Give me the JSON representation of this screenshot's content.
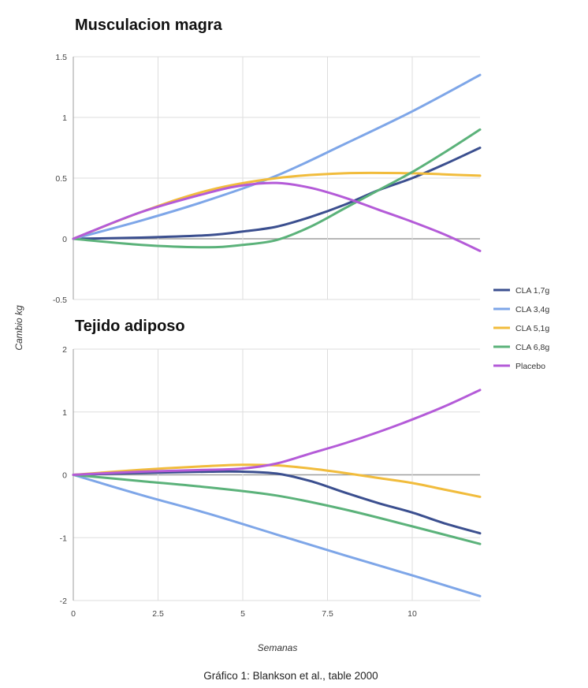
{
  "chart_data": {
    "type": "line",
    "xlabel": "Semanas",
    "ylabel": "Cambio kg",
    "caption": "Gráfico 1: Blankson et al., table 2000",
    "grid": true,
    "legend_position": "right",
    "x_ticks": [
      "0",
      "2.5",
      "5",
      "7.5",
      "10"
    ],
    "xlim": [
      0,
      12
    ],
    "legend": [
      {
        "name": "CLA 1,7g",
        "color": "#3b4f8f"
      },
      {
        "name": "CLA 3,4g",
        "color": "#7ea6e8"
      },
      {
        "name": "CLA 5,1g",
        "color": "#f1bc3c"
      },
      {
        "name": "CLA 6,8g",
        "color": "#5bb27a"
      },
      {
        "name": "Placebo",
        "color": "#b45bd8"
      }
    ],
    "panels": [
      {
        "title": "Musculacion magra",
        "ylim": [
          -0.5,
          1.5
        ],
        "y_ticks": [
          "1.5",
          "1",
          "0.5",
          "0",
          "-0.5"
        ],
        "series": [
          {
            "name": "CLA 1,7g",
            "x": [
              0,
              2,
              4,
              5,
              6,
              7,
              8,
              9,
              10,
              11,
              12
            ],
            "y": [
              0,
              0.01,
              0.03,
              0.06,
              0.1,
              0.18,
              0.28,
              0.4,
              0.5,
              0.62,
              0.75
            ]
          },
          {
            "name": "CLA 3,4g",
            "x": [
              0,
              2,
              4,
              6,
              8,
              10,
              12
            ],
            "y": [
              0,
              0.15,
              0.32,
              0.52,
              0.78,
              1.05,
              1.35
            ]
          },
          {
            "name": "CLA 5,1g",
            "x": [
              0,
              2,
              4,
              6,
              8,
              10,
              11,
              12
            ],
            "y": [
              0,
              0.22,
              0.4,
              0.5,
              0.54,
              0.54,
              0.53,
              0.52
            ]
          },
          {
            "name": "CLA 6,8g",
            "x": [
              0,
              2,
              4,
              5,
              6,
              7,
              8,
              9,
              10,
              11,
              12
            ],
            "y": [
              0,
              -0.05,
              -0.07,
              -0.05,
              -0.01,
              0.1,
              0.25,
              0.4,
              0.55,
              0.72,
              0.9
            ]
          },
          {
            "name": "Placebo",
            "x": [
              0,
              2,
              4,
              5,
              6,
              7,
              8,
              9,
              10,
              11,
              12
            ],
            "y": [
              0,
              0.22,
              0.38,
              0.44,
              0.46,
              0.42,
              0.34,
              0.24,
              0.14,
              0.03,
              -0.1
            ]
          }
        ]
      },
      {
        "title": "Tejido adiposo",
        "ylim": [
          -2,
          2
        ],
        "y_ticks": [
          "2",
          "1",
          "0",
          "-1",
          "-2"
        ],
        "series": [
          {
            "name": "CLA 1,7g",
            "x": [
              0,
              2,
              4,
              5,
              6,
              7,
              8,
              9,
              10,
              11,
              12
            ],
            "y": [
              0,
              0.03,
              0.05,
              0.05,
              0.02,
              -0.1,
              -0.28,
              -0.45,
              -0.6,
              -0.78,
              -0.93
            ]
          },
          {
            "name": "CLA 3,4g",
            "x": [
              0,
              2,
              4,
              6,
              8,
              10,
              12
            ],
            "y": [
              0,
              -0.32,
              -0.62,
              -0.95,
              -1.28,
              -1.6,
              -1.93
            ]
          },
          {
            "name": "CLA 5,1g",
            "x": [
              0,
              2,
              4,
              5,
              6,
              7,
              8,
              9,
              10,
              11,
              12
            ],
            "y": [
              0,
              0.08,
              0.14,
              0.16,
              0.15,
              0.1,
              0.03,
              -0.05,
              -0.13,
              -0.24,
              -0.35
            ]
          },
          {
            "name": "CLA 6,8g",
            "x": [
              0,
              2,
              4,
              6,
              8,
              10,
              12
            ],
            "y": [
              0,
              -0.1,
              -0.2,
              -0.33,
              -0.55,
              -0.82,
              -1.1
            ]
          },
          {
            "name": "Placebo",
            "x": [
              0,
              2,
              4,
              5,
              6,
              7,
              8,
              9,
              10,
              11,
              12
            ],
            "y": [
              0,
              0.05,
              0.08,
              0.1,
              0.18,
              0.34,
              0.5,
              0.68,
              0.88,
              1.1,
              1.35
            ]
          }
        ]
      }
    ]
  }
}
